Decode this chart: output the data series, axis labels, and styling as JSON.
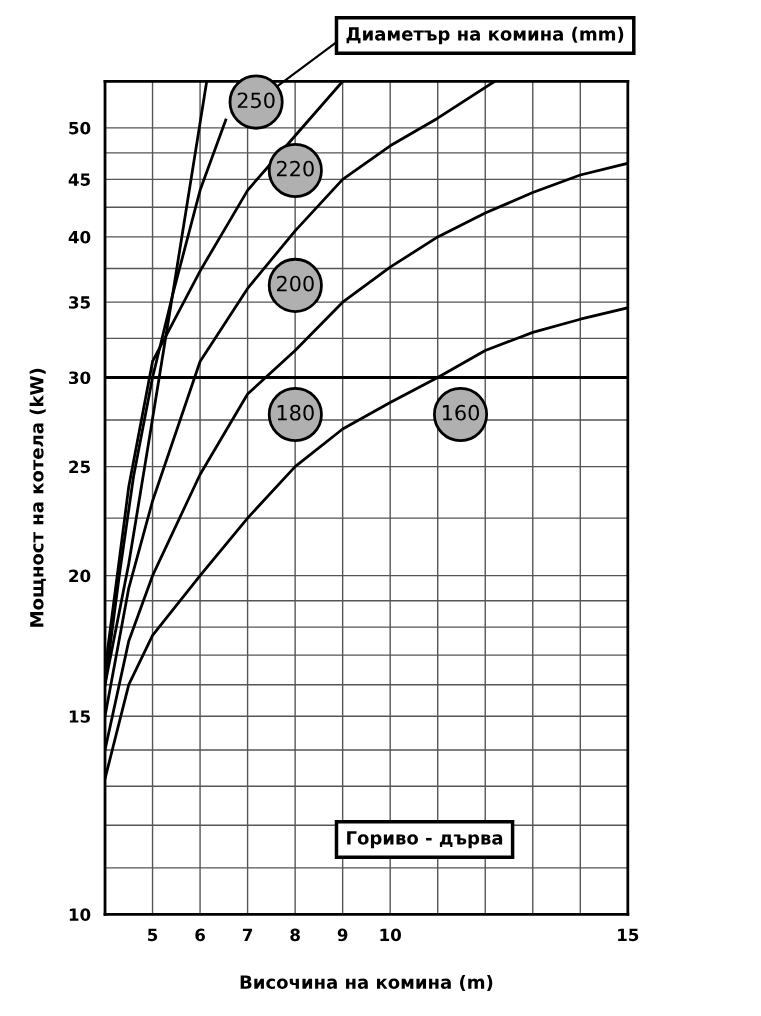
{
  "chart_data": {
    "type": "line",
    "xlabel": "Височина на комина (m)",
    "ylabel": "Мощност на котела (kW)",
    "log": "y",
    "grid": true,
    "marker": "none",
    "line_style": "solid",
    "xlim": [
      4,
      15
    ],
    "ylim": [
      10,
      55
    ],
    "xticks": [
      {
        "value": 4,
        "label": null
      },
      5,
      6,
      7,
      8,
      9,
      10,
      {
        "value": 11,
        "label": null
      },
      {
        "value": 12,
        "label": null
      },
      {
        "value": 13,
        "label": null
      },
      {
        "value": 14,
        "label": null
      },
      15
    ],
    "yticks": [
      10,
      {
        "value": 11,
        "label": null
      },
      {
        "value": 12,
        "label": null
      },
      {
        "value": 13,
        "label": null
      },
      {
        "value": 14,
        "label": null
      },
      15,
      {
        "value": 16,
        "label": null
      },
      {
        "value": 17,
        "label": null
      },
      {
        "value": 18,
        "label": null
      },
      {
        "value": 19,
        "label": null
      },
      20,
      {
        "value": 22.5,
        "label": null
      },
      25,
      {
        "value": 27.5,
        "label": null
      },
      30,
      {
        "value": 32.5,
        "label": null
      },
      35,
      {
        "value": 37.5,
        "label": null
      },
      40,
      {
        "value": 42.5,
        "label": null
      },
      45,
      {
        "value": 47.5,
        "label": null
      },
      50
    ],
    "series": [
      {
        "color": "#000000",
        "x": [
          4,
          4.5,
          4.94,
          5.42,
          6.14
        ],
        "values": [
          16,
          20.5,
          26.6,
          35.5,
          55
        ]
      },
      {
        "color": "#000000",
        "x": [
          4,
          4.3,
          4.6,
          5,
          5.42,
          6,
          6.54
        ],
        "values": [
          16,
          20,
          24.5,
          30,
          35.5,
          44,
          50.8
        ]
      },
      {
        "color": "#000000",
        "x": [
          4,
          4.5,
          5,
          6,
          7,
          8,
          9
        ],
        "values": [
          16.5,
          24,
          31,
          37.3,
          44,
          49.2,
          55
        ]
      },
      {
        "color": "#000000",
        "x": [
          4,
          4.5,
          5,
          6,
          7,
          8,
          9,
          10,
          11,
          12.2
        ],
        "values": [
          15,
          19.5,
          23.3,
          31,
          36,
          40.5,
          45,
          48.2,
          51,
          55
        ]
      },
      {
        "color": "#000000",
        "x": [
          4,
          4.5,
          5,
          6,
          7,
          8,
          9,
          10,
          11,
          12,
          13,
          14,
          15
        ],
        "values": [
          14,
          17.5,
          20,
          24.6,
          29,
          31.7,
          35,
          37.6,
          40,
          42,
          43.8,
          45.4,
          46.5
        ]
      },
      {
        "color": "#000000",
        "x": [
          4,
          4.5,
          5,
          6,
          7,
          8,
          9,
          10,
          11,
          12,
          13,
          14,
          15
        ],
        "values": [
          13.2,
          16,
          17.7,
          20,
          22.5,
          25,
          27,
          28.5,
          30,
          31.7,
          32.9,
          33.8,
          34.6
        ]
      }
    ],
    "ref_lines": [
      {
        "axis": "y",
        "value": 30,
        "color": "#000000"
      }
    ],
    "annotations": [
      "Диаметър на комина (mm)",
      "Гориво - дърва",
      "250",
      "220",
      "200",
      "180",
      "160"
    ]
  }
}
